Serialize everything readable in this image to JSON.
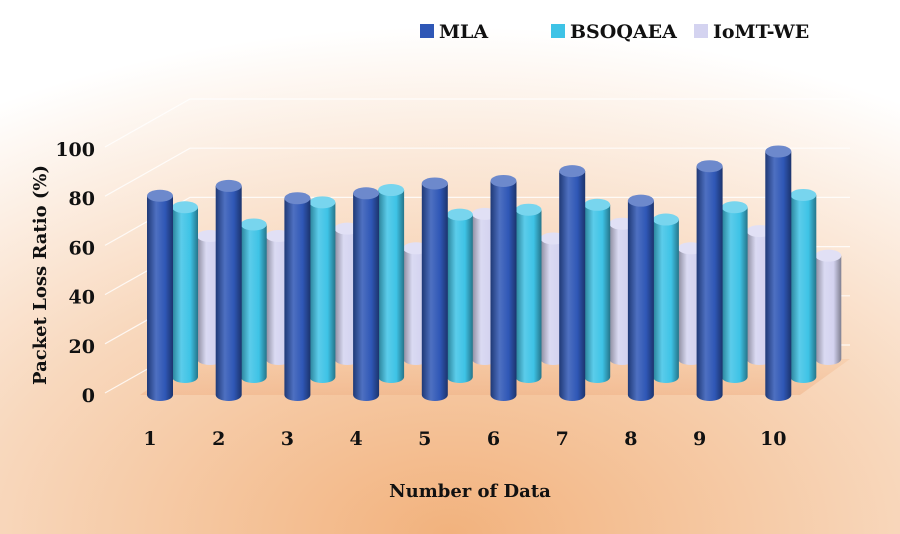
{
  "chart_data": {
    "type": "bar",
    "style": "3d-clustered",
    "categories": [
      "1",
      "2",
      "3",
      "4",
      "5",
      "6",
      "7",
      "8",
      "9",
      "10"
    ],
    "series": [
      {
        "name": "MLA",
        "values": [
          81,
          85,
          80,
          82,
          86,
          87,
          91,
          79,
          93,
          99
        ],
        "color": "#2f57b6"
      },
      {
        "name": "BSOQAEA",
        "values": [
          69,
          62,
          71,
          76,
          66,
          68,
          70,
          64,
          69,
          74
        ],
        "color": "#3ec3e6"
      },
      {
        "name": "IoMT-WE",
        "values": [
          50,
          50,
          53,
          45,
          59,
          49,
          55,
          45,
          52,
          42
        ],
        "color": "#d4d3f0"
      }
    ],
    "xlabel": "Number of Data",
    "ylabel": "Packet Loss Ratio (%)",
    "ylim": [
      0,
      100
    ],
    "yticks": [
      0,
      20,
      40,
      60,
      80,
      100
    ],
    "grid": true,
    "legend_position": "top-right"
  }
}
